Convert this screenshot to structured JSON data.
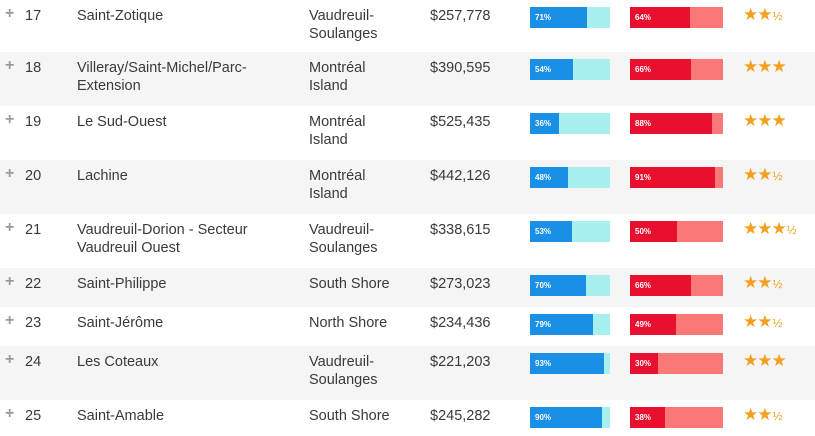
{
  "colors": {
    "bar1_fill": "#1a8fe6",
    "bar1_track": "#a8eff0",
    "bar2_fill": "#e8102e",
    "bar2_track": "#fb7878",
    "star": "#f2a01e"
  },
  "icons": {
    "expand": "plus-icon",
    "rating": "star-icon"
  },
  "rows": [
    {
      "expand": "+",
      "rank": "17",
      "name_lines": [
        "Saint-Zotique"
      ],
      "region_lines": [
        "Vaudreuil-",
        "Soulanges"
      ],
      "price": "$257,778",
      "bar1_pct": "71%",
      "bar1_value": 71,
      "bar2_pct": "64%",
      "bar2_value": 64,
      "stars": "★★",
      "half": "½"
    },
    {
      "expand": "+",
      "rank": "18",
      "name_lines": [
        "Villeray/Saint-Michel/Parc-",
        "Extension"
      ],
      "region_lines": [
        "Montréal",
        "Island"
      ],
      "price": "$390,595",
      "bar1_pct": "54%",
      "bar1_value": 54,
      "bar2_pct": "66%",
      "bar2_value": 66,
      "stars": "★★★",
      "half": ""
    },
    {
      "expand": "+",
      "rank": "19",
      "name_lines": [
        "Le Sud-Ouest"
      ],
      "region_lines": [
        "Montréal",
        "Island"
      ],
      "price": "$525,435",
      "bar1_pct": "36%",
      "bar1_value": 36,
      "bar2_pct": "88%",
      "bar2_value": 88,
      "stars": "★★★",
      "half": ""
    },
    {
      "expand": "+",
      "rank": "20",
      "name_lines": [
        "Lachine"
      ],
      "region_lines": [
        "Montréal",
        "Island"
      ],
      "price": "$442,126",
      "bar1_pct": "48%",
      "bar1_value": 48,
      "bar2_pct": "91%",
      "bar2_value": 91,
      "stars": "★★",
      "half": "½"
    },
    {
      "expand": "+",
      "rank": "21",
      "name_lines": [
        "Vaudreuil-Dorion - Secteur",
        "Vaudreuil Ouest"
      ],
      "region_lines": [
        "Vaudreuil-",
        "Soulanges"
      ],
      "price": "$338,615",
      "bar1_pct": "53%",
      "bar1_value": 53,
      "bar2_pct": "50%",
      "bar2_value": 50,
      "stars": "★★★",
      "half": "½"
    },
    {
      "expand": "+",
      "rank": "22",
      "name_lines": [
        "Saint-Philippe"
      ],
      "region_lines": [
        "South Shore"
      ],
      "price": "$273,023",
      "bar1_pct": "70%",
      "bar1_value": 70,
      "bar2_pct": "66%",
      "bar2_value": 66,
      "stars": "★★",
      "half": "½"
    },
    {
      "expand": "+",
      "rank": "23",
      "name_lines": [
        "Saint-Jérôme"
      ],
      "region_lines": [
        "North Shore"
      ],
      "price": "$234,436",
      "bar1_pct": "79%",
      "bar1_value": 79,
      "bar2_pct": "49%",
      "bar2_value": 49,
      "stars": "★★",
      "half": "½"
    },
    {
      "expand": "+",
      "rank": "24",
      "name_lines": [
        "Les Coteaux"
      ],
      "region_lines": [
        "Vaudreuil-",
        "Soulanges"
      ],
      "price": "$221,203",
      "bar1_pct": "93%",
      "bar1_value": 93,
      "bar2_pct": "30%",
      "bar2_value": 30,
      "stars": "★★★",
      "half": ""
    },
    {
      "expand": "+",
      "rank": "25",
      "name_lines": [
        "Saint-Amable"
      ],
      "region_lines": [
        "South Shore"
      ],
      "price": "$245,282",
      "bar1_pct": "90%",
      "bar1_value": 90,
      "bar2_pct": "38%",
      "bar2_value": 38,
      "stars": "★★",
      "half": "½"
    }
  ]
}
